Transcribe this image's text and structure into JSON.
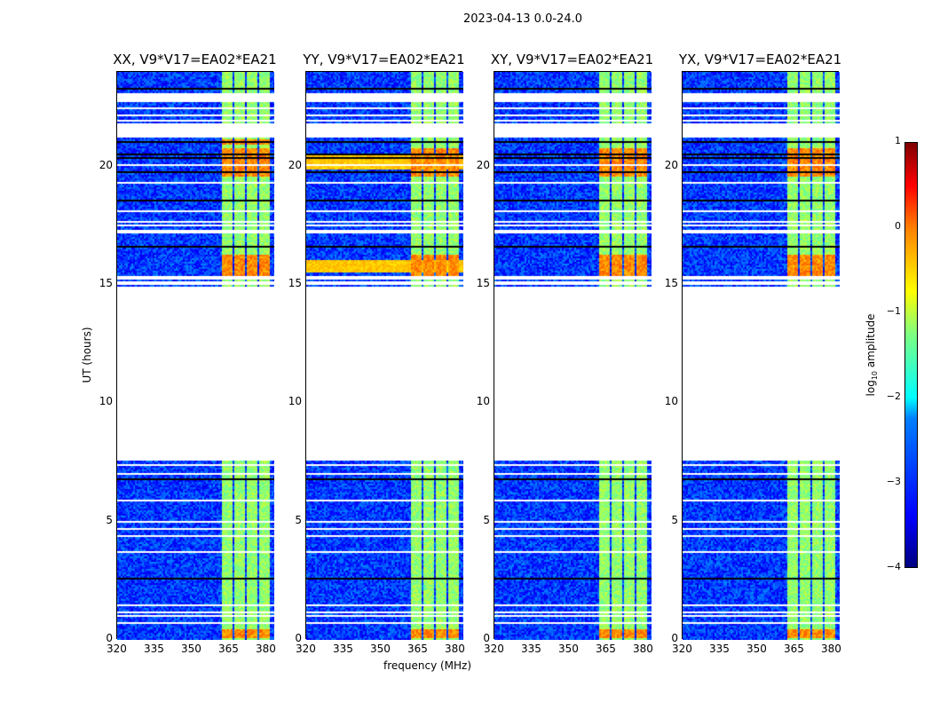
{
  "chart_data": {
    "type": "heatmap",
    "title": "2023-04-13 0.0-24.0",
    "xlabel": "frequency (MHz)",
    "ylabel": "UT (hours)",
    "xlim": [
      320,
      383.2
    ],
    "ylim": [
      0,
      24
    ],
    "xticks": [
      "320",
      "335",
      "350",
      "365",
      "380"
    ],
    "xtick_values": [
      320,
      335,
      350,
      365,
      380
    ],
    "yticks": [
      "0",
      "5",
      "10",
      "15",
      "20"
    ],
    "ytick_values": [
      0,
      5,
      10,
      15,
      20
    ],
    "panels": [
      {
        "title": "XX, V9*V17=EA02*EA21",
        "high_epochs": [
          [
            15.4,
            16.3
          ],
          [
            19.6,
            20.8
          ],
          [
            21.0,
            21.2
          ],
          [
            0.1,
            0.5
          ]
        ]
      },
      {
        "title": "YY, V9*V17=EA02*EA21",
        "high_epochs": [
          [
            15.4,
            16.3
          ],
          [
            19.6,
            20.8
          ],
          [
            0.1,
            0.5
          ]
        ],
        "broadband_rfi": [
          [
            19.9,
            20.5
          ],
          [
            15.6,
            16.1
          ]
        ]
      },
      {
        "title": "XY, V9*V17=EA02*EA21",
        "high_epochs": [
          [
            15.4,
            16.3
          ],
          [
            19.6,
            20.8
          ],
          [
            0.1,
            0.5
          ]
        ]
      },
      {
        "title": "YX, V9*V17=EA02*EA21",
        "high_epochs": [
          [
            15.4,
            16.3
          ],
          [
            19.6,
            20.8
          ],
          [
            0.1,
            0.5
          ]
        ]
      }
    ],
    "data_gap_hours": [
      7.6,
      15.0
    ],
    "bright_subbands_mhz": [
      [
        361.5,
        366
      ],
      [
        366.8,
        371.3
      ],
      [
        372,
        376.3
      ],
      [
        377,
        381
      ]
    ],
    "background_log10": -3.1,
    "subband_log10": -1.4,
    "colorbar": {
      "label": "log10 amplitude",
      "ticks": [
        "1",
        "0",
        "−1",
        "−2",
        "−3",
        "−4"
      ],
      "tick_values": [
        1,
        0,
        -1,
        -2,
        -3,
        -4
      ],
      "range": [
        -4,
        1
      ],
      "colormap": "jet"
    }
  },
  "colorbar_label_main": "log",
  "colorbar_label_sub": "10",
  "colorbar_label_rest": " amplitude"
}
